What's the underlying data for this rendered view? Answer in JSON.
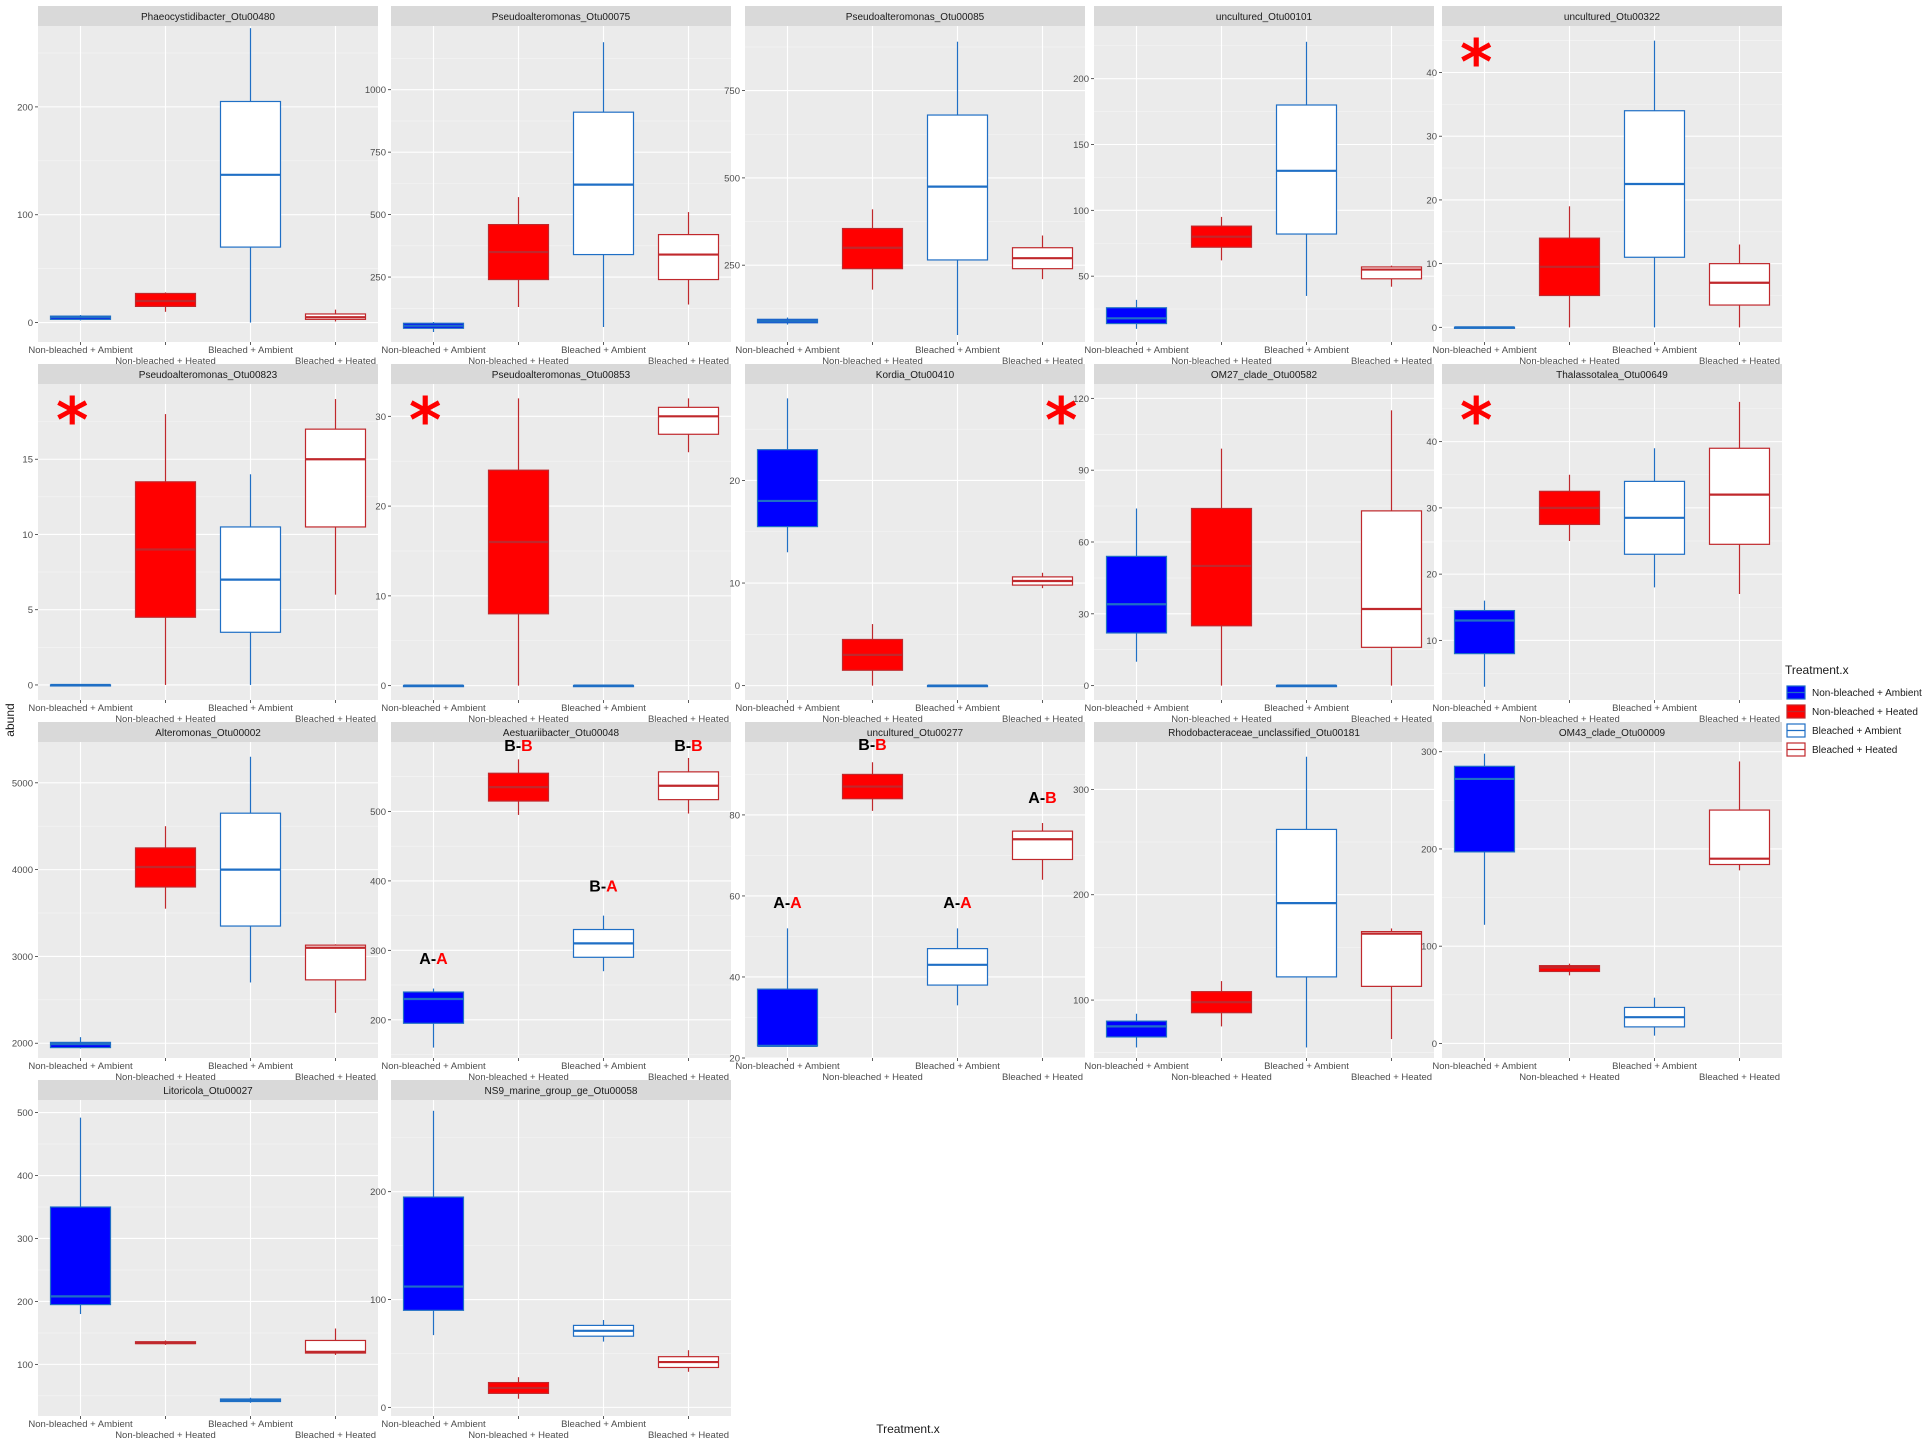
{
  "axes": {
    "xlabel": "Treatment.x",
    "ylabel": "abund"
  },
  "legend": {
    "title": "Treatment.x",
    "placement": "right",
    "entries": [
      {
        "label": "Non-bleached + Ambient",
        "color": "#0000ff",
        "filled": true
      },
      {
        "label": "Non-bleached + Heated",
        "color": "#ff0000",
        "filled": true
      },
      {
        "label": "Bleached + Ambient",
        "color": "#1f6fc5",
        "filled": false
      },
      {
        "label": "Bleached + Heated",
        "color": "#c0282c",
        "filled": false
      }
    ]
  },
  "colors": {
    "nb_ambient_fill": "#0000ff",
    "nb_ambient_line": "#1f6fc5",
    "nb_heated_fill": "#ff0000",
    "nb_heated_line": "#c0282c",
    "b_ambient_line": "#1f6fc5",
    "b_heated_line": "#c0282c",
    "annotation_red": "#ff0000",
    "annotation_black": "#000000"
  },
  "chart_data": [
    {
      "type": "box",
      "title": "Phaeocystidibacter_Otu00480",
      "categories": [
        "Non-bleached + Ambient",
        "Non-bleached + Heated",
        "Bleached + Ambient",
        "Bleached + Heated"
      ],
      "ylim": [
        -18,
        275
      ],
      "yticks": [
        0,
        100,
        200
      ],
      "boxes": [
        [
          2,
          3,
          5,
          6,
          7
        ],
        [
          10,
          15,
          20,
          27,
          28
        ],
        [
          0,
          70,
          137,
          205,
          273
        ],
        [
          1,
          3,
          5,
          8,
          12
        ]
      ],
      "annotations": []
    },
    {
      "type": "box",
      "title": "Pseudoalteromonas_Otu00075",
      "categories": [
        "Non-bleached + Ambient",
        "Non-bleached + Heated",
        "Bleached + Ambient",
        "Bleached + Heated"
      ],
      "ylim": [
        -10,
        1255
      ],
      "yticks": [
        250,
        500,
        750,
        1000
      ],
      "boxes": [
        [
          30,
          45,
          55,
          65,
          70
        ],
        [
          130,
          240,
          350,
          460,
          570
        ],
        [
          50,
          340,
          620,
          910,
          1190
        ],
        [
          140,
          240,
          340,
          420,
          510
        ]
      ],
      "annotations": []
    },
    {
      "type": "box",
      "title": "Pseudoalteromonas_Otu00085",
      "categories": [
        "Non-bleached + Ambient",
        "Non-bleached + Heated",
        "Bleached + Ambient",
        "Bleached + Heated"
      ],
      "ylim": [
        30,
        935
      ],
      "yticks": [
        250,
        500,
        750
      ],
      "boxes": [
        [
          80,
          85,
          90,
          95,
          100
        ],
        [
          180,
          240,
          300,
          355,
          410
        ],
        [
          50,
          265,
          475,
          680,
          890
        ],
        [
          210,
          240,
          270,
          300,
          335
        ]
      ],
      "annotations": []
    },
    {
      "type": "box",
      "title": "uncultured_Otu00101",
      "categories": [
        "Non-bleached + Ambient",
        "Non-bleached + Heated",
        "Bleached + Ambient",
        "Bleached + Heated"
      ],
      "ylim": [
        0,
        240
      ],
      "yticks": [
        50,
        100,
        150,
        200
      ],
      "boxes": [
        [
          10,
          14,
          18,
          26,
          32
        ],
        [
          62,
          72,
          80,
          88,
          95
        ],
        [
          35,
          82,
          130,
          180,
          228
        ],
        [
          42,
          48,
          55,
          57,
          58
        ]
      ],
      "annotations": []
    },
    {
      "type": "box",
      "title": "uncultured_Otu00322",
      "categories": [
        "Non-bleached + Ambient",
        "Non-bleached + Heated",
        "Bleached + Ambient",
        "Bleached + Heated"
      ],
      "ylim": [
        -2.3,
        47.3
      ],
      "yticks": [
        0,
        10,
        20,
        30,
        40
      ],
      "boxes": [
        [
          0,
          0,
          0,
          0,
          0
        ],
        [
          0,
          5,
          9.5,
          14,
          19
        ],
        [
          0,
          11,
          22.5,
          34,
          45
        ],
        [
          0,
          3.5,
          7,
          10,
          13
        ]
      ],
      "annotations": [
        {
          "type": "star",
          "text": "*",
          "position": "top-left"
        }
      ]
    },
    {
      "type": "box",
      "title": "Pseudoalteromonas_Otu00823",
      "categories": [
        "Non-bleached + Ambient",
        "Non-bleached + Heated",
        "Bleached + Ambient",
        "Bleached + Heated"
      ],
      "ylim": [
        -1,
        20
      ],
      "yticks": [
        0,
        5,
        10,
        15
      ],
      "boxes": [
        [
          0,
          0,
          0,
          0,
          0
        ],
        [
          0,
          4.5,
          9,
          13.5,
          18
        ],
        [
          0,
          3.5,
          7,
          10.5,
          14
        ],
        [
          6,
          10.5,
          15,
          17,
          19
        ]
      ],
      "annotations": [
        {
          "type": "star",
          "text": "*",
          "position": "top-left"
        }
      ]
    },
    {
      "type": "box",
      "title": "Pseudoalteromonas_Otu00853",
      "categories": [
        "Non-bleached + Ambient",
        "Non-bleached + Heated",
        "Bleached + Ambient",
        "Bleached + Heated"
      ],
      "ylim": [
        -1.6,
        33.6
      ],
      "yticks": [
        0,
        10,
        20,
        30
      ],
      "boxes": [
        [
          0,
          0,
          0,
          0,
          0
        ],
        [
          0,
          8,
          16,
          24,
          32
        ],
        [
          0,
          0,
          0,
          0,
          0
        ],
        [
          26,
          28,
          30,
          31,
          32
        ]
      ],
      "annotations": [
        {
          "type": "star",
          "text": "*",
          "position": "top-left"
        }
      ]
    },
    {
      "type": "box",
      "title": "Kordia_Otu00410",
      "categories": [
        "Non-bleached + Ambient",
        "Non-bleached + Heated",
        "Bleached + Ambient",
        "Bleached + Heated"
      ],
      "ylim": [
        -1.4,
        29.4
      ],
      "yticks": [
        0,
        10,
        20
      ],
      "boxes": [
        [
          13,
          15.5,
          18,
          23,
          28
        ],
        [
          0,
          1.5,
          3,
          4.5,
          6
        ],
        [
          0,
          0,
          0,
          0,
          0
        ],
        [
          9.5,
          9.8,
          10.2,
          10.6,
          11
        ]
      ],
      "annotations": [
        {
          "type": "star",
          "text": "*",
          "position": "top-right"
        }
      ]
    },
    {
      "type": "box",
      "title": "OM27_clade_Otu00582",
      "categories": [
        "Non-bleached + Ambient",
        "Non-bleached + Heated",
        "Bleached + Ambient",
        "Bleached + Heated"
      ],
      "ylim": [
        -6,
        126
      ],
      "yticks": [
        0,
        30,
        60,
        90,
        120
      ],
      "boxes": [
        [
          10,
          22,
          34,
          54,
          74
        ],
        [
          0,
          25,
          50,
          74,
          99
        ],
        [
          0,
          0,
          0,
          0,
          0
        ],
        [
          0,
          16,
          32,
          73,
          115
        ]
      ],
      "annotations": []
    },
    {
      "type": "box",
      "title": "Thalassotalea_Otu00649",
      "categories": [
        "Non-bleached + Ambient",
        "Non-bleached + Heated",
        "Bleached + Ambient",
        "Bleached + Heated"
      ],
      "ylim": [
        1,
        48.7
      ],
      "yticks": [
        10,
        20,
        30,
        40
      ],
      "boxes": [
        [
          3,
          8,
          13,
          14.5,
          16
        ],
        [
          25,
          27.5,
          30,
          32.5,
          35
        ],
        [
          18,
          23,
          28.5,
          34,
          39
        ],
        [
          17,
          24.5,
          32,
          39,
          46
        ]
      ],
      "annotations": [
        {
          "type": "star",
          "text": "*",
          "position": "top-left"
        }
      ]
    },
    {
      "type": "box",
      "title": "Alteromonas_Otu00002",
      "categories": [
        "Non-bleached + Ambient",
        "Non-bleached + Heated",
        "Bleached + Ambient",
        "Bleached + Heated"
      ],
      "ylim": [
        1830,
        5470
      ],
      "yticks": [
        2000,
        3000,
        4000,
        5000
      ],
      "boxes": [
        [
          1940,
          1950,
          1990,
          2010,
          2070
        ],
        [
          3550,
          3800,
          4030,
          4250,
          4500
        ],
        [
          2700,
          3350,
          4000,
          4650,
          5300
        ],
        [
          2350,
          2730,
          3100,
          3130,
          3140
        ]
      ],
      "annotations": []
    },
    {
      "type": "box",
      "title": "Aestuariibacter_Otu00048",
      "categories": [
        "Non-bleached + Ambient",
        "Non-bleached + Heated",
        "Bleached + Ambient",
        "Bleached + Heated"
      ],
      "ylim": [
        145,
        600
      ],
      "yticks": [
        200,
        300,
        400,
        500
      ],
      "boxes": [
        [
          160,
          195,
          230,
          240,
          245
        ],
        [
          495,
          515,
          535,
          555,
          575
        ],
        [
          270,
          290,
          310,
          330,
          350
        ],
        [
          497,
          517,
          537,
          557,
          577
        ]
      ],
      "annotations": [
        {
          "type": "letters",
          "parts": [
            {
              "text": "A-",
              "color": "black"
            },
            {
              "text": "A",
              "color": "red"
            }
          ],
          "anchor_category": "Non-bleached + Ambient",
          "anchor_y": 280
        },
        {
          "type": "letters",
          "parts": [
            {
              "text": "B-",
              "color": "black"
            },
            {
              "text": "B",
              "color": "red"
            }
          ],
          "anchor_category": "Non-bleached + Heated",
          "anchor_y": 587
        },
        {
          "type": "letters",
          "parts": [
            {
              "text": "B-",
              "color": "black"
            },
            {
              "text": "A",
              "color": "red"
            }
          ],
          "anchor_category": "Bleached + Ambient",
          "anchor_y": 385
        },
        {
          "type": "letters",
          "parts": [
            {
              "text": "B-",
              "color": "black"
            },
            {
              "text": "B",
              "color": "red"
            }
          ],
          "anchor_category": "Bleached + Heated",
          "anchor_y": 587
        }
      ]
    },
    {
      "type": "box",
      "title": "uncultured_Otu00277",
      "categories": [
        "Non-bleached + Ambient",
        "Non-bleached + Heated",
        "Bleached + Ambient",
        "Bleached + Heated"
      ],
      "ylim": [
        20,
        98
      ],
      "yticks": [
        20,
        40,
        60,
        80
      ],
      "boxes": [
        [
          23,
          23,
          23,
          37,
          52
        ],
        [
          81,
          84,
          87,
          90,
          93
        ],
        [
          33,
          38,
          43,
          47,
          52
        ],
        [
          64,
          69,
          74,
          76,
          78
        ]
      ],
      "annotations": [
        {
          "type": "letters",
          "parts": [
            {
              "text": "A-",
              "color": "black"
            },
            {
              "text": "A",
              "color": "red"
            }
          ],
          "anchor_category": "Non-bleached + Ambient",
          "anchor_y": 57
        },
        {
          "type": "letters",
          "parts": [
            {
              "text": "B-",
              "color": "black"
            },
            {
              "text": "B",
              "color": "red"
            }
          ],
          "anchor_category": "Non-bleached + Heated",
          "anchor_y": 96
        },
        {
          "type": "letters",
          "parts": [
            {
              "text": "A-",
              "color": "black"
            },
            {
              "text": "A",
              "color": "red"
            }
          ],
          "anchor_category": "Bleached + Ambient",
          "anchor_y": 57
        },
        {
          "type": "letters",
          "parts": [
            {
              "text": "A-",
              "color": "black"
            },
            {
              "text": "B",
              "color": "red"
            }
          ],
          "anchor_category": "Bleached + Heated",
          "anchor_y": 83
        }
      ]
    },
    {
      "type": "box",
      "title": "Rhodobacteraceae_unclassified_Otu00181",
      "categories": [
        "Non-bleached + Ambient",
        "Non-bleached + Heated",
        "Bleached + Ambient",
        "Bleached + Heated"
      ],
      "ylim": [
        45,
        345
      ],
      "yticks": [
        100,
        200,
        300
      ],
      "boxes": [
        [
          55,
          65,
          75,
          80,
          87
        ],
        [
          75,
          88,
          98,
          108,
          118
        ],
        [
          55,
          122,
          192,
          262,
          331
        ],
        [
          63,
          113,
          163,
          165,
          168
        ]
      ],
      "annotations": []
    },
    {
      "type": "box",
      "title": "OM43_clade_Otu00009",
      "categories": [
        "Non-bleached + Ambient",
        "Non-bleached + Heated",
        "Bleached + Ambient",
        "Bleached + Heated"
      ],
      "ylim": [
        -15,
        310
      ],
      "yticks": [
        0,
        100,
        200,
        300
      ],
      "boxes": [
        [
          122,
          197,
          272,
          285,
          298
        ],
        [
          70,
          74,
          78,
          80,
          82
        ],
        [
          8,
          17,
          27,
          37,
          47
        ],
        [
          178,
          184,
          190,
          240,
          290
        ]
      ],
      "annotations": []
    },
    {
      "type": "box",
      "title": "Litoricola_Otu00027",
      "categories": [
        "Non-bleached + Ambient",
        "Non-bleached + Heated",
        "Bleached + Ambient",
        "Bleached + Heated"
      ],
      "ylim": [
        18,
        520
      ],
      "yticks": [
        100,
        200,
        300,
        400,
        500
      ],
      "boxes": [
        [
          180,
          195,
          208,
          350,
          492
        ],
        [
          131,
          133,
          134,
          136,
          138
        ],
        [
          39,
          41,
          43,
          45,
          47
        ],
        [
          115,
          118,
          120,
          138,
          157
        ]
      ],
      "annotations": []
    },
    {
      "type": "box",
      "title": "NS9_marine_group_ge_Otu00058",
      "categories": [
        "Non-bleached + Ambient",
        "Non-bleached + Heated",
        "Bleached + Ambient",
        "Bleached + Heated"
      ],
      "ylim": [
        -8,
        285
      ],
      "yticks": [
        0,
        100,
        200
      ],
      "boxes": [
        [
          67,
          90,
          112,
          195,
          275
        ],
        [
          8,
          13,
          18,
          23,
          28
        ],
        [
          61,
          66,
          71,
          76,
          81
        ],
        [
          33,
          37,
          42,
          47,
          53
        ]
      ],
      "annotations": []
    }
  ]
}
